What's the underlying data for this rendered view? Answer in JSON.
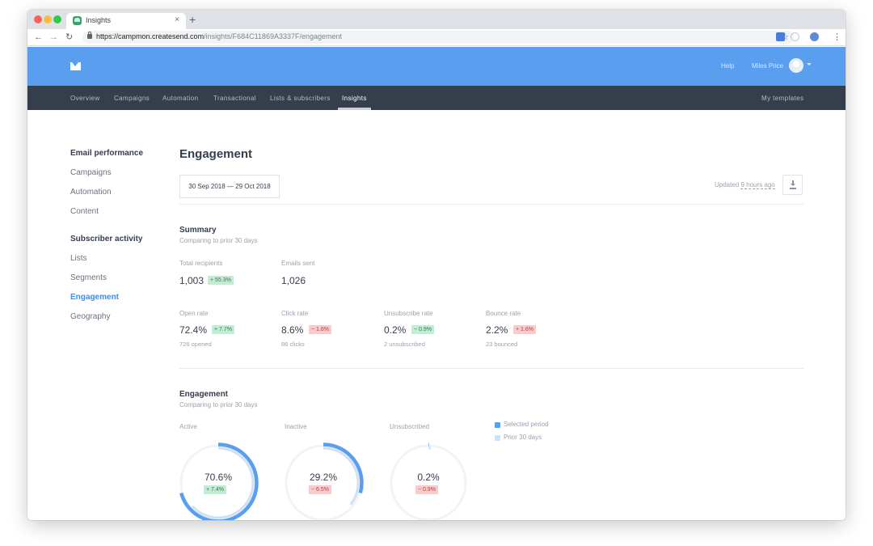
{
  "browser": {
    "tab_title": "Insights",
    "tab_close": "×",
    "new_tab": "+",
    "url_host": "https://campmon.createsend.com",
    "url_path": "/insights/F684C11869A3337F/engagement"
  },
  "header": {
    "help": "Help",
    "user_name": "Miles Price"
  },
  "nav": {
    "items": [
      "Overview",
      "Campaigns",
      "Automation",
      "Transactional",
      "Lists & subscribers",
      "Insights"
    ],
    "right": "My templates",
    "active": "Insights"
  },
  "sidebar": {
    "email_heading": "Email performance",
    "email_items": [
      "Campaigns",
      "Automation",
      "Content"
    ],
    "subscriber_heading": "Subscriber activity",
    "subscriber_items": [
      "Lists",
      "Segments",
      "Engagement",
      "Geography"
    ],
    "active": "Engagement"
  },
  "main": {
    "title": "Engagement",
    "date_range": "30 Sep 2018 — 29 Oct 2018",
    "updated_prefix": "Updated",
    "updated_ago": "9 hours ago"
  },
  "summary": {
    "heading": "Summary",
    "subheading": "Comparing to prior 30 days",
    "total_recipients": {
      "label": "Total recipients",
      "value": "1,003",
      "change": "+ 55.3%"
    },
    "emails_sent": {
      "label": "Emails sent",
      "value": "1,026"
    },
    "rates": [
      {
        "label": "Open rate",
        "value": "72.4%",
        "change": "+ 7.7%",
        "direction": "up",
        "note": "726 opened"
      },
      {
        "label": "Click rate",
        "value": "8.6%",
        "change": "− 1.6%",
        "direction": "down",
        "note": "86 clicks"
      },
      {
        "label": "Unsubscribe rate",
        "value": "0.2%",
        "change": "− 0.9%",
        "direction": "up",
        "note": "2 unsubscribed"
      },
      {
        "label": "Bounce rate",
        "value": "2.2%",
        "change": "+ 1.6%",
        "direction": "down",
        "note": "23 bounced"
      }
    ]
  },
  "engagement": {
    "heading": "Engagement",
    "subheading": "Comparing to prior 30 days",
    "legend": [
      {
        "label": "Selected period",
        "color": "#5a9ef0"
      },
      {
        "label": "Prior 30 days",
        "color": "#cfe1f7"
      }
    ],
    "donuts": [
      {
        "label": "Active",
        "value": "70.6%",
        "change": "+ 7.4%",
        "direction": "up",
        "selected_pct": 70.6,
        "prior_pct": 63.2
      },
      {
        "label": "Inactive",
        "value": "29.2%",
        "change": "− 6.5%",
        "direction": "down",
        "selected_pct": 29.2,
        "prior_pct": 35.7
      },
      {
        "label": "Unsubscribed",
        "value": "0.2%",
        "change": "− 0.9%",
        "direction": "down",
        "selected_pct": 0.2,
        "prior_pct": 1.1
      }
    ]
  }
}
